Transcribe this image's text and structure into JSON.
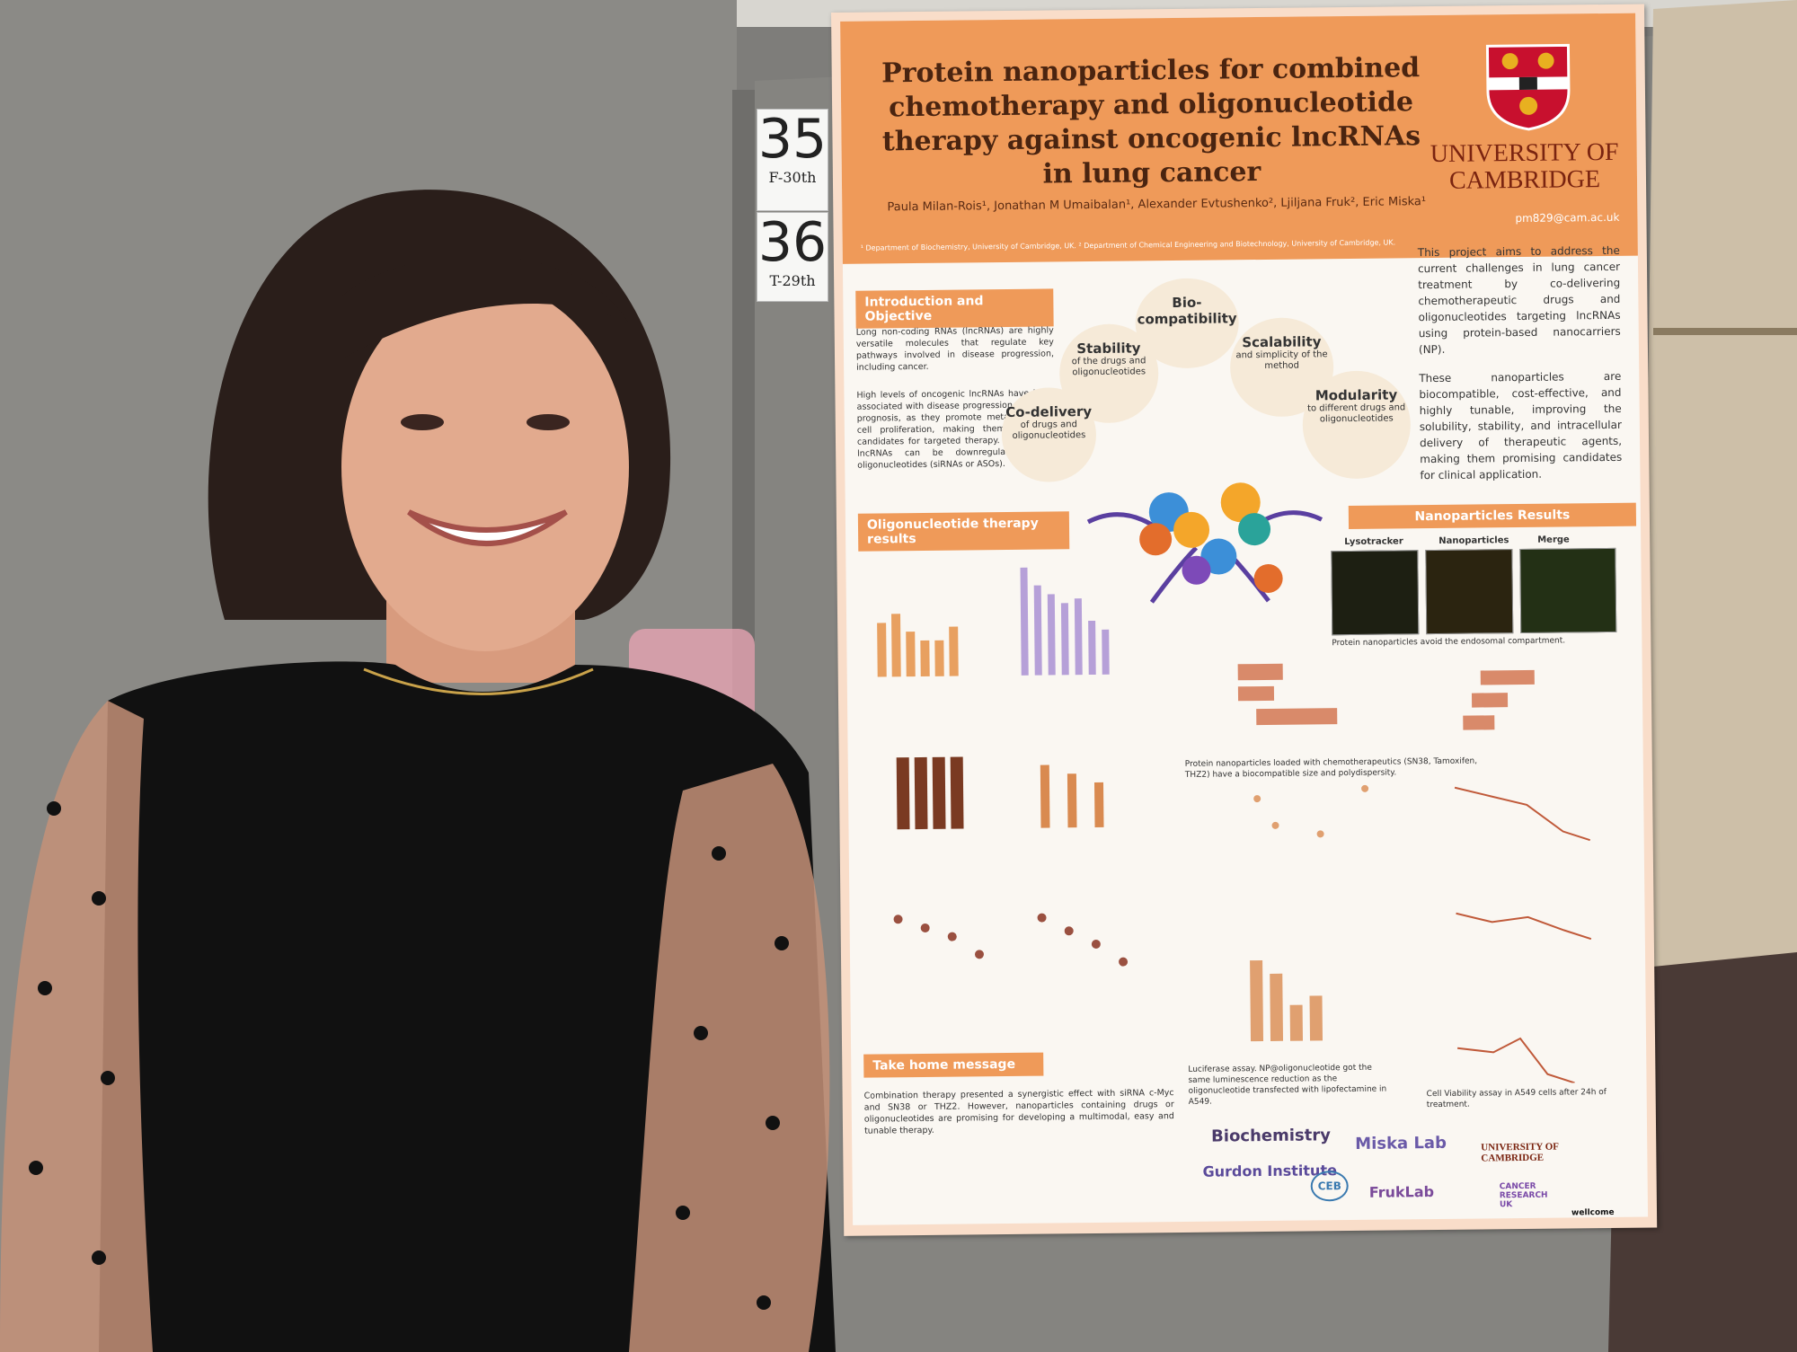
{
  "cards": [
    {
      "number": 35,
      "note": "F-30th"
    },
    {
      "number": 36,
      "note": "T-29th"
    }
  ],
  "poster": {
    "title": "Protein nanoparticles for combined chemotherapy and oligonucleotide therapy against oncogenic lncRNAs in lung cancer",
    "institution": "UNIVERSITY OF CAMBRIDGE",
    "authors": "Paula Milan-Rois¹, Jonathan M Umaibalan¹, Alexander Evtushenko², Ljiljana Fruk², Eric Miska¹",
    "email": "pm829@cam.ac.uk",
    "affiliations": "¹ Department of Biochemistry, University of Cambridge, UK. ² Department of Chemical Engineering and Biotechnology, University of Cambridge, UK.",
    "intro_heading": "Introduction and Objective",
    "intro_text": [
      "Long non-coding RNAs (lncRNAs) are highly versatile molecules that regulate key pathways involved in disease progression, including cancer.",
      "High levels of oncogenic lncRNAs have been associated with disease progression and poor prognosis, as they promote metastasis and cell proliferation, making them attractive candidates for targeted therapy. Specifically, lncRNAs can be downregulated using oligonucleotides (siRNAs or ASOs)."
    ],
    "aim_text": [
      "This project aims to address the current challenges in lung cancer treatment by co-delivering chemotherapeutic drugs and oligonucleotides targeting lncRNAs using protein-based nanocarriers (NP).",
      "These nanoparticles are biocompatible, cost-effective, and highly tunable, improving the solubility, stability, and intracellular delivery of therapeutic agents, making them promising candidates for clinical application."
    ],
    "bubbles": [
      {
        "title": "Bio-compatibility",
        "text": ""
      },
      {
        "title": "Stability",
        "text": "of the drugs and oligonucleotides"
      },
      {
        "title": "Scalability",
        "text": "and simplicity of the method"
      },
      {
        "title": "Co-delivery",
        "text": "of drugs and oligonucleotides"
      },
      {
        "title": "Modularity",
        "text": "to different drugs and oligonucleotides"
      }
    ],
    "oligo_heading": "Oligonucleotide therapy results",
    "np_heading": "Nanoparticles Results",
    "microscopy_labels": [
      "Lysotracker",
      "Nanoparticles",
      "Merge"
    ],
    "microscopy_caption": "Protein nanoparticles avoid the endosomal compartment.",
    "captions": [
      "Protein nanoparticles loaded with chemotherapeutics (SN38, Tamoxifen, THZ2) have a biocompatible size and polydispersity.",
      "Luciferase assay. NP@oligonucleotide got the same luminescence reduction as the oligonucleotide transfected with lipofectamine in A549.",
      "Cell Viability assay in A549 cells after 24h of treatment."
    ],
    "take_home_heading": "Take home message",
    "take_home_text": "Combination therapy presented a synergistic effect with siRNA c-Myc and SN38 or THZ2. However, nanoparticles containing drugs or oligonucleotides are promising for developing a multimodal, easy and tunable therapy.",
    "logos": [
      "Biochemistry",
      "Miska Lab",
      "Gurdon Institute",
      "CEB",
      "FrukLab",
      "UNIVERSITY OF CAMBRIDGE",
      "CANCER RESEARCH UK",
      "wellcome"
    ]
  }
}
